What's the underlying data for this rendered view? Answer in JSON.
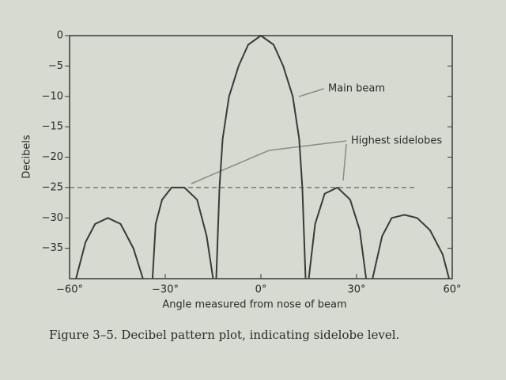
{
  "chart_data": {
    "type": "line",
    "caption": "Figure 3–5.   Decibel pattern plot, indicating sidelobe level.",
    "xlabel": "Angle measured from nose of beam",
    "ylabel": "Decibels",
    "x": [
      -58,
      -55,
      -52,
      -48,
      -44,
      -40,
      -37,
      null,
      -34,
      -33,
      -31,
      -28,
      -24,
      -20,
      -17,
      -15,
      null,
      -14,
      -13,
      -12,
      -10,
      -7,
      -4,
      0,
      4,
      7,
      10,
      12,
      13,
      14,
      null,
      15,
      17,
      20,
      24,
      28,
      31,
      33,
      null,
      35,
      38,
      41,
      45,
      49,
      53,
      57,
      59
    ],
    "series": [
      {
        "color": "#3a3a38",
        "values": [
          -40,
          -34,
          -31,
          -30,
          -31,
          -35,
          -40,
          null,
          -40,
          -31,
          -27,
          -25,
          -25,
          -27,
          -33,
          -40,
          null,
          -40,
          -25,
          -17,
          -10,
          -5,
          -1.5,
          0,
          -1.5,
          -5,
          -10,
          -17,
          -25,
          -40,
          null,
          -40,
          -31,
          -26,
          -25,
          -27,
          -32,
          -40,
          null,
          -40,
          -33,
          -30,
          -29.5,
          -30,
          -32,
          -36,
          -40
        ]
      }
    ],
    "reference_line": -25,
    "annotations": [
      "Main beam",
      "Highest sidelobes"
    ],
    "xlim": [
      -60,
      60
    ],
    "ylim": [
      -40,
      0
    ],
    "xticks": [
      {
        "value": -60,
        "label": "−60°"
      },
      {
        "value": -30,
        "label": "−30°"
      },
      {
        "value": 0,
        "label": "0°"
      },
      {
        "value": 30,
        "label": "30°"
      },
      {
        "value": 60,
        "label": "60°"
      }
    ],
    "yticks": [
      0,
      {
        "value": -5,
        "label": "−5"
      },
      {
        "value": -10,
        "label": "−10"
      },
      {
        "value": -15,
        "label": "−15"
      },
      {
        "value": -20,
        "label": "−20"
      },
      {
        "value": -25,
        "label": "−25"
      },
      {
        "value": -30,
        "label": "−30"
      },
      {
        "value": -35,
        "label": "−35"
      }
    ]
  }
}
